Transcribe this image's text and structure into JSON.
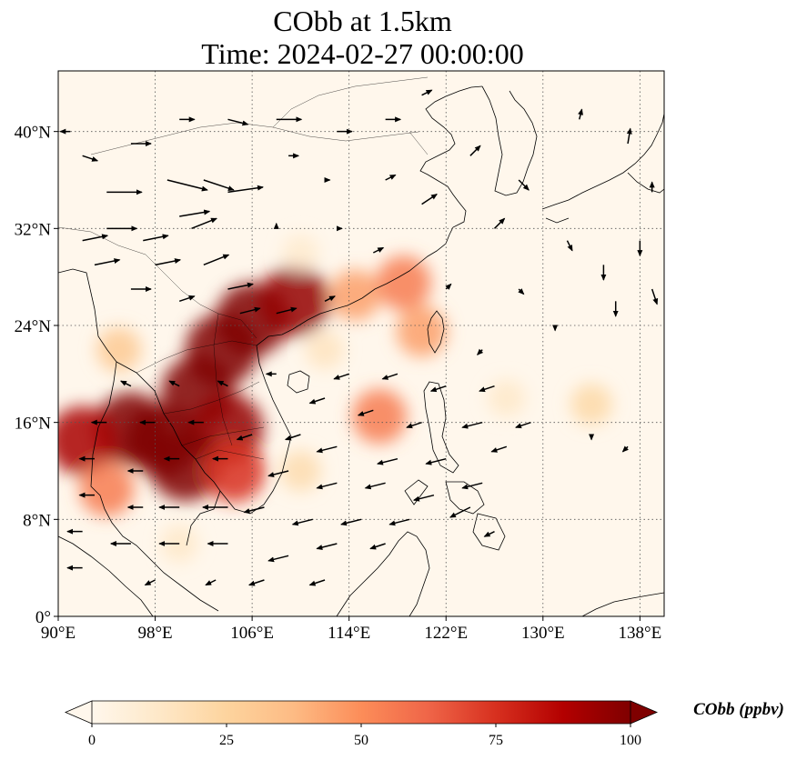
{
  "figure": {
    "title_line1": "CObb at 1.5km",
    "title_line2": "Time: 2024-02-27 00:00:00"
  },
  "map": {
    "projection": "PlateCarree",
    "lon_range": [
      90,
      140
    ],
    "lat_range": [
      0,
      45
    ],
    "gridlines": "dotted",
    "coastlines": true,
    "borders": true,
    "x_ticks": [
      {
        "value": 90,
        "label": "90°E"
      },
      {
        "value": 98,
        "label": "98°E"
      },
      {
        "value": 106,
        "label": "106°E"
      },
      {
        "value": 114,
        "label": "114°E"
      },
      {
        "value": 122,
        "label": "122°E"
      },
      {
        "value": 130,
        "label": "130°E"
      },
      {
        "value": 138,
        "label": "138°E"
      }
    ],
    "y_ticks": [
      {
        "value": 0,
        "label": "0°"
      },
      {
        "value": 8,
        "label": "8°N"
      },
      {
        "value": 16,
        "label": "16°N"
      },
      {
        "value": 24,
        "label": "24°N"
      },
      {
        "value": 32,
        "label": "32°N"
      },
      {
        "value": 40,
        "label": "40°N"
      }
    ],
    "plumes": [
      {
        "lon": 98.5,
        "lat": 14.5,
        "value": 100
      },
      {
        "lon": 96.0,
        "lat": 15.5,
        "value": 100
      },
      {
        "lon": 92.0,
        "lat": 14.5,
        "value": 90
      },
      {
        "lon": 101.5,
        "lat": 18.5,
        "value": 100
      },
      {
        "lon": 103.5,
        "lat": 22.0,
        "value": 100
      },
      {
        "lon": 106.0,
        "lat": 24.5,
        "value": 100
      },
      {
        "lon": 109.5,
        "lat": 26.0,
        "value": 95
      },
      {
        "lon": 104.0,
        "lat": 15.5,
        "value": 95
      },
      {
        "lon": 100.5,
        "lat": 12.5,
        "value": 100
      },
      {
        "lon": 104.5,
        "lat": 12.0,
        "value": 75
      },
      {
        "lon": 94.0,
        "lat": 10.5,
        "value": 55
      },
      {
        "lon": 114.5,
        "lat": 26.5,
        "value": 45
      },
      {
        "lon": 118.5,
        "lat": 27.5,
        "value": 55
      },
      {
        "lon": 116.5,
        "lat": 16.5,
        "value": 55
      },
      {
        "lon": 120.0,
        "lat": 23.5,
        "value": 45
      },
      {
        "lon": 110.0,
        "lat": 12.0,
        "value": 20
      },
      {
        "lon": 127.0,
        "lat": 18.0,
        "value": 12
      },
      {
        "lon": 134.0,
        "lat": 17.5,
        "value": 22
      },
      {
        "lon": 95.0,
        "lat": 22.0,
        "value": 30
      },
      {
        "lon": 112.0,
        "lat": 22.0,
        "value": 15
      },
      {
        "lon": 110.0,
        "lat": 30.0,
        "value": 10
      },
      {
        "lon": 100.0,
        "lat": 6.0,
        "value": 12
      }
    ],
    "wind_vectors": [
      {
        "lon": 91,
        "lat": 40,
        "u": -2,
        "v": 0
      },
      {
        "lon": 92,
        "lat": 38,
        "u": 3,
        "v": -1
      },
      {
        "lon": 96,
        "lat": 39,
        "u": 4,
        "v": 0
      },
      {
        "lon": 100,
        "lat": 41,
        "u": 3,
        "v": 0
      },
      {
        "lon": 104,
        "lat": 41,
        "u": 4,
        "v": -1
      },
      {
        "lon": 108,
        "lat": 41,
        "u": 5,
        "v": 0
      },
      {
        "lon": 113,
        "lat": 40,
        "u": 3,
        "v": 0
      },
      {
        "lon": 117,
        "lat": 41,
        "u": 3,
        "v": 0
      },
      {
        "lon": 120,
        "lat": 43,
        "u": 2,
        "v": 1
      },
      {
        "lon": 94,
        "lat": 35,
        "u": 7,
        "v": 0
      },
      {
        "lon": 99,
        "lat": 36,
        "u": 8,
        "v": -2
      },
      {
        "lon": 102,
        "lat": 36,
        "u": 6,
        "v": -2
      },
      {
        "lon": 104,
        "lat": 35,
        "u": 7,
        "v": 1
      },
      {
        "lon": 100,
        "lat": 33,
        "u": 6,
        "v": 1
      },
      {
        "lon": 94,
        "lat": 32,
        "u": 6,
        "v": 0
      },
      {
        "lon": 92,
        "lat": 31,
        "u": 5,
        "v": 1
      },
      {
        "lon": 97,
        "lat": 31,
        "u": 5,
        "v": 1
      },
      {
        "lon": 101,
        "lat": 32,
        "u": 5,
        "v": 2
      },
      {
        "lon": 93,
        "lat": 29,
        "u": 5,
        "v": 1
      },
      {
        "lon": 98,
        "lat": 29,
        "u": 5,
        "v": 1
      },
      {
        "lon": 102,
        "lat": 29,
        "u": 5,
        "v": 2
      },
      {
        "lon": 104,
        "lat": 27,
        "u": 5,
        "v": 1
      },
      {
        "lon": 96,
        "lat": 27,
        "u": 4,
        "v": 0
      },
      {
        "lon": 100,
        "lat": 26,
        "u": 3,
        "v": 1
      },
      {
        "lon": 105,
        "lat": 25,
        "u": 4,
        "v": 1
      },
      {
        "lon": 108,
        "lat": 25,
        "u": 4,
        "v": 1
      },
      {
        "lon": 112,
        "lat": 26,
        "u": 2,
        "v": 1
      },
      {
        "lon": 116,
        "lat": 30,
        "u": 2,
        "v": 1
      },
      {
        "lon": 120,
        "lat": 34,
        "u": 3,
        "v": 2
      },
      {
        "lon": 124,
        "lat": 38,
        "u": 2,
        "v": 2
      },
      {
        "lon": 128,
        "lat": 36,
        "u": 2,
        "v": -2
      },
      {
        "lon": 132,
        "lat": 31,
        "u": 1,
        "v": -2
      },
      {
        "lon": 135,
        "lat": 29,
        "u": 0,
        "v": -3
      },
      {
        "lon": 136,
        "lat": 26,
        "u": 0,
        "v": -3
      },
      {
        "lon": 138,
        "lat": 31,
        "u": 0,
        "v": -3
      },
      {
        "lon": 139,
        "lat": 27,
        "u": 1,
        "v": -3
      },
      {
        "lon": 137,
        "lat": 39,
        "u": 0.5,
        "v": 3
      },
      {
        "lon": 133,
        "lat": 41,
        "u": 0.5,
        "v": 2
      },
      {
        "lon": 139,
        "lat": 35,
        "u": 0,
        "v": 2
      },
      {
        "lon": 126,
        "lat": 32,
        "u": 2,
        "v": 2
      },
      {
        "lon": 122,
        "lat": 27,
        "u": 1,
        "v": 1
      },
      {
        "lon": 128,
        "lat": 27,
        "u": 1,
        "v": -1
      },
      {
        "lon": 131,
        "lat": 24,
        "u": 0,
        "v": -1
      },
      {
        "lon": 125,
        "lat": 22,
        "u": -1,
        "v": -1
      },
      {
        "lon": 126,
        "lat": 19,
        "u": -3,
        "v": -1
      },
      {
        "lon": 122,
        "lat": 19,
        "u": -3,
        "v": -1
      },
      {
        "lon": 118,
        "lat": 20,
        "u": -3,
        "v": -1
      },
      {
        "lon": 114,
        "lat": 20,
        "u": -3,
        "v": -1
      },
      {
        "lon": 112,
        "lat": 18,
        "u": -3,
        "v": -1
      },
      {
        "lon": 116,
        "lat": 17,
        "u": -3,
        "v": -1
      },
      {
        "lon": 120,
        "lat": 16,
        "u": -3,
        "v": -1
      },
      {
        "lon": 125,
        "lat": 16,
        "u": -4,
        "v": -1
      },
      {
        "lon": 129,
        "lat": 16,
        "u": -3,
        "v": -1
      },
      {
        "lon": 134,
        "lat": 15,
        "u": 0,
        "v": -1
      },
      {
        "lon": 137,
        "lat": 14,
        "u": -1,
        "v": -1
      },
      {
        "lon": 127,
        "lat": 14,
        "u": -3,
        "v": -1
      },
      {
        "lon": 122,
        "lat": 13,
        "u": -4,
        "v": -1
      },
      {
        "lon": 118,
        "lat": 13,
        "u": -4,
        "v": -1
      },
      {
        "lon": 113,
        "lat": 14,
        "u": -4,
        "v": -1
      },
      {
        "lon": 110,
        "lat": 15,
        "u": -3,
        "v": -1
      },
      {
        "lon": 109,
        "lat": 12,
        "u": -4,
        "v": -1
      },
      {
        "lon": 113,
        "lat": 11,
        "u": -4,
        "v": -1
      },
      {
        "lon": 117,
        "lat": 11,
        "u": -4,
        "v": -1
      },
      {
        "lon": 121,
        "lat": 10,
        "u": -4,
        "v": -1
      },
      {
        "lon": 125,
        "lat": 11,
        "u": -4,
        "v": -1
      },
      {
        "lon": 124,
        "lat": 9,
        "u": -4,
        "v": -2
      },
      {
        "lon": 126,
        "lat": 7,
        "u": -2,
        "v": -1
      },
      {
        "lon": 119,
        "lat": 8,
        "u": -4,
        "v": -1
      },
      {
        "lon": 115,
        "lat": 8,
        "u": -4,
        "v": -1
      },
      {
        "lon": 111,
        "lat": 8,
        "u": -4,
        "v": -1
      },
      {
        "lon": 107,
        "lat": 9,
        "u": -4,
        "v": -1
      },
      {
        "lon": 104,
        "lat": 9,
        "u": -5,
        "v": 0
      },
      {
        "lon": 100,
        "lat": 9,
        "u": -4,
        "v": 0
      },
      {
        "lon": 97,
        "lat": 9,
        "u": -3,
        "v": 0
      },
      {
        "lon": 93,
        "lat": 10,
        "u": -3,
        "v": 0
      },
      {
        "lon": 97,
        "lat": 12,
        "u": -3,
        "v": 0
      },
      {
        "lon": 93,
        "lat": 13,
        "u": -3,
        "v": 0
      },
      {
        "lon": 100,
        "lat": 13,
        "u": -3,
        "v": 0
      },
      {
        "lon": 104,
        "lat": 13,
        "u": -3,
        "v": 0
      },
      {
        "lon": 106,
        "lat": 15,
        "u": -3,
        "v": -1
      },
      {
        "lon": 102,
        "lat": 16,
        "u": -3,
        "v": 0
      },
      {
        "lon": 98,
        "lat": 16,
        "u": -3,
        "v": 0
      },
      {
        "lon": 94,
        "lat": 16,
        "u": -3,
        "v": 0
      },
      {
        "lon": 96,
        "lat": 19,
        "u": -2,
        "v": 1
      },
      {
        "lon": 100,
        "lat": 19,
        "u": -2,
        "v": 1
      },
      {
        "lon": 104,
        "lat": 19,
        "u": -2,
        "v": 1
      },
      {
        "lon": 108,
        "lat": 20,
        "u": -2,
        "v": 0
      },
      {
        "lon": 92,
        "lat": 7,
        "u": -3,
        "v": 0
      },
      {
        "lon": 96,
        "lat": 6,
        "u": -4,
        "v": 0
      },
      {
        "lon": 100,
        "lat": 6,
        "u": -4,
        "v": 0
      },
      {
        "lon": 104,
        "lat": 6,
        "u": -4,
        "v": 0
      },
      {
        "lon": 109,
        "lat": 5,
        "u": -4,
        "v": -1
      },
      {
        "lon": 113,
        "lat": 6,
        "u": -4,
        "v": -1
      },
      {
        "lon": 117,
        "lat": 6,
        "u": -3,
        "v": -1
      },
      {
        "lon": 107,
        "lat": 3,
        "u": -3,
        "v": -1
      },
      {
        "lon": 112,
        "lat": 3,
        "u": -3,
        "v": -1
      },
      {
        "lon": 103,
        "lat": 3,
        "u": -2,
        "v": -1
      },
      {
        "lon": 92,
        "lat": 4,
        "u": -3,
        "v": 0
      },
      {
        "lon": 98,
        "lat": 3,
        "u": -2,
        "v": -1
      },
      {
        "lon": 109,
        "lat": 38,
        "u": 2,
        "v": 0
      },
      {
        "lon": 112,
        "lat": 36,
        "u": 1,
        "v": 0
      },
      {
        "lon": 117,
        "lat": 36,
        "u": 2,
        "v": 1
      },
      {
        "lon": 108,
        "lat": 32,
        "u": 0,
        "v": 1
      },
      {
        "lon": 113,
        "lat": 32,
        "u": 1,
        "v": 0
      }
    ]
  },
  "colorbar": {
    "label": "CObb (ppbv)",
    "min": 0,
    "max": 100,
    "extend": "both",
    "cmap": "OrRd",
    "ticks": [
      {
        "value": 0,
        "label": "0"
      },
      {
        "value": 25,
        "label": "25"
      },
      {
        "value": 50,
        "label": "50"
      },
      {
        "value": 75,
        "label": "75"
      },
      {
        "value": 100,
        "label": "100"
      }
    ],
    "colors": [
      "#fff7ec",
      "#fee8c8",
      "#fdd49e",
      "#fdbb84",
      "#fc8d59",
      "#ef6548",
      "#d7301f",
      "#b30000",
      "#7f0000"
    ]
  }
}
